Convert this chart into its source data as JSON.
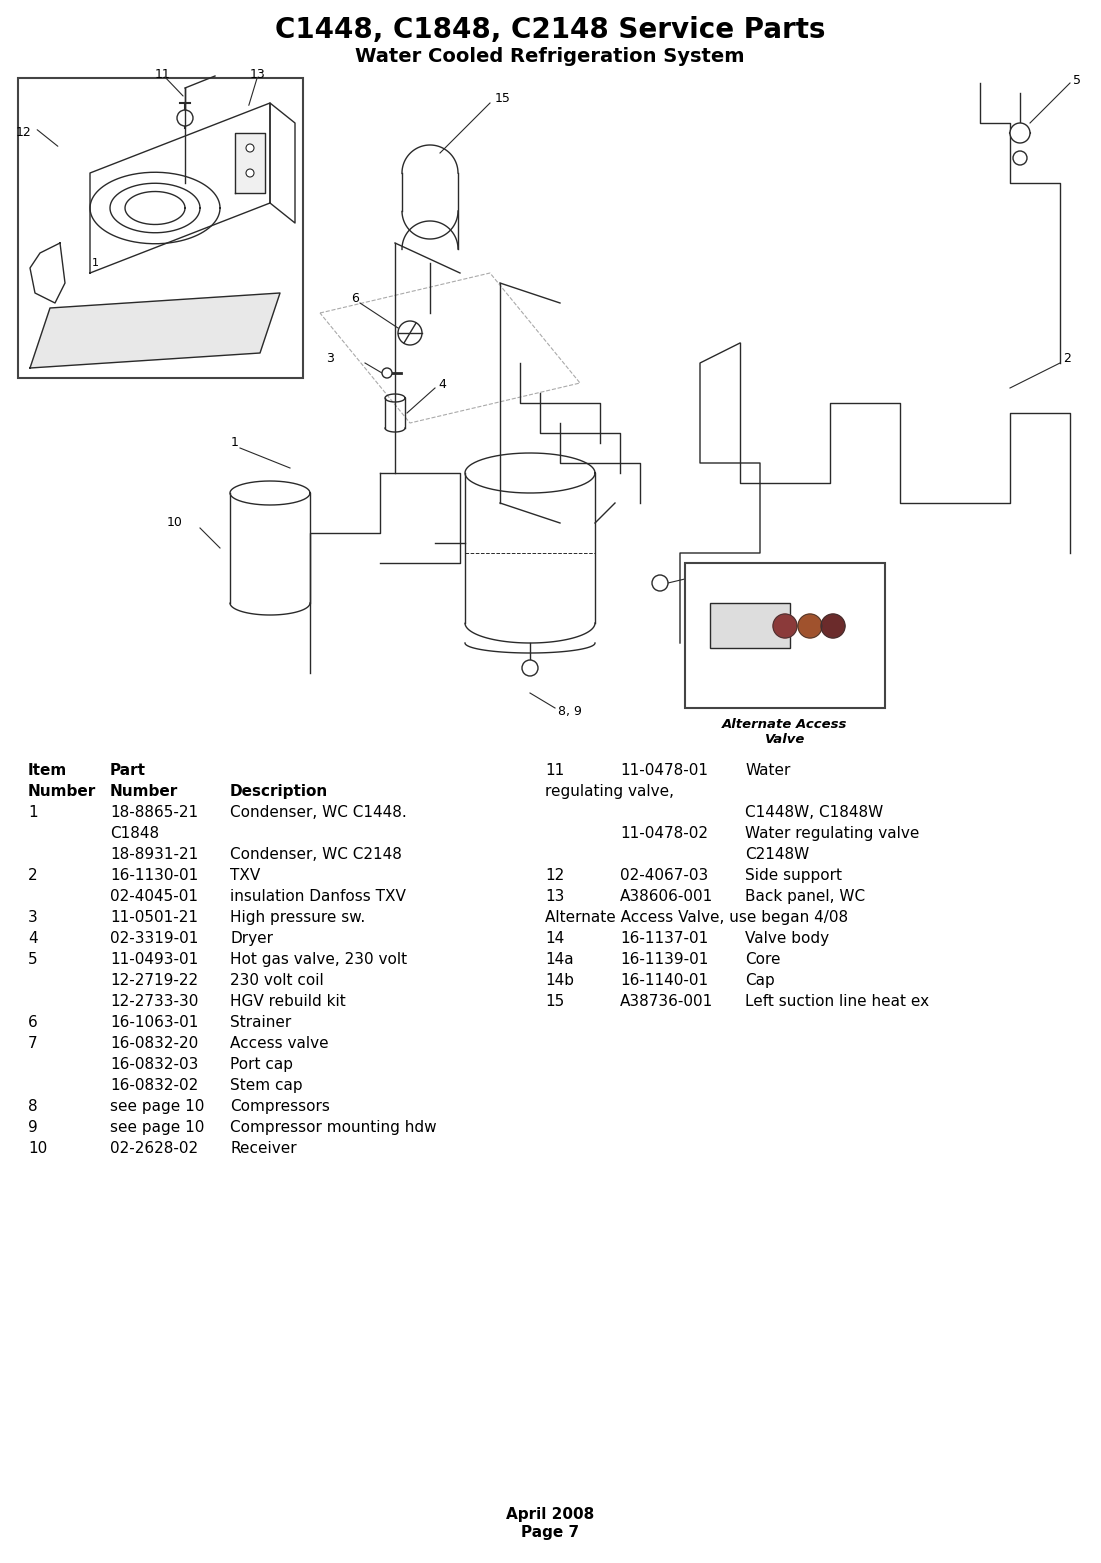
{
  "title": "C1448, C1848, C2148 Service Parts",
  "subtitle": "Water Cooled Refrigeration System",
  "title_fontsize": 20,
  "subtitle_fontsize": 14,
  "bg_color": "#ffffff",
  "text_color": "#000000",
  "table_left": [
    [
      "1",
      "18-8865-21",
      "Condenser, WC C1448."
    ],
    [
      "",
      "C1848",
      ""
    ],
    [
      "",
      "18-8931-21",
      "Condenser, WC C2148"
    ],
    [
      "2",
      "16-1130-01",
      "TXV"
    ],
    [
      "",
      "02-4045-01",
      "insulation Danfoss TXV"
    ],
    [
      "3",
      "11-0501-21",
      "High pressure sw."
    ],
    [
      "4",
      "02-3319-01",
      "Dryer"
    ],
    [
      "5",
      "11-0493-01",
      "Hot gas valve, 230 volt"
    ],
    [
      "",
      "12-2719-22",
      "230 volt coil"
    ],
    [
      "",
      "12-2733-30",
      "HGV rebuild kit"
    ],
    [
      "6",
      "16-1063-01",
      "Strainer"
    ],
    [
      "7",
      "16-0832-20",
      "Access valve"
    ],
    [
      "",
      "16-0832-03",
      "Port cap"
    ],
    [
      "",
      "16-0832-02",
      "Stem cap"
    ],
    [
      "8",
      "see page 10",
      "Compressors"
    ],
    [
      "9",
      "see page 10",
      "Compressor mounting hdw"
    ],
    [
      "10",
      "02-2628-02",
      "Receiver"
    ]
  ],
  "table_right_hdr_item": "11",
  "table_right_hdr_part": "11-0478-01",
  "table_right_hdr_desc1": "Water",
  "table_right_hdr_desc2": "regulating valve,",
  "table_right": [
    [
      "",
      "11-0478-02",
      "Water regulating valve"
    ],
    [
      "",
      "",
      "C2148W"
    ],
    [
      "12",
      "02-4067-03",
      "Side support"
    ],
    [
      "13",
      "A38606-001",
      "Back panel, WC"
    ],
    [
      "ALT",
      "Alternate Access Valve, use began 4/08",
      ""
    ],
    [
      "14",
      "16-1137-01",
      "Valve body"
    ],
    [
      "14a",
      "16-1139-01",
      "Core"
    ],
    [
      "14b",
      "16-1140-01",
      "Cap"
    ],
    [
      "15",
      "A38736-001",
      "Left suction line heat ex"
    ]
  ],
  "table_right_note": "C1448W, C1848W",
  "footer_line1": "April 2008",
  "footer_line2": "Page 7",
  "footer_fontsize": 11,
  "diagram_line_color": "#2a2a2a",
  "diagram_lw": 1.0,
  "alt_valve_label": "Alternate Access\nValve"
}
